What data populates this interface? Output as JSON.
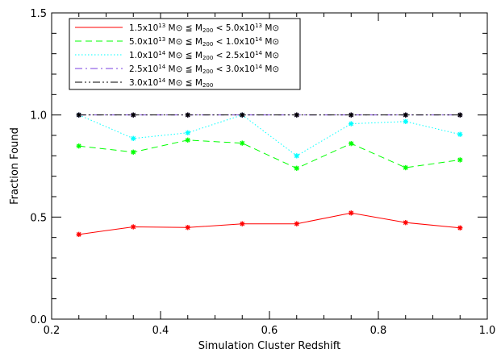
{
  "chart_data": {
    "type": "line",
    "xlabel": "Simulation Cluster Redshift",
    "ylabel": "Fraction Found",
    "xlim": [
      0.2,
      1.0
    ],
    "ylim": [
      0.0,
      1.5
    ],
    "xticks": [
      "0.2",
      "0.4",
      "0.6",
      "0.8",
      "1.0"
    ],
    "yticks": [
      "0.0",
      "0.5",
      "1.0",
      "1.5"
    ],
    "x": [
      0.25,
      0.35,
      0.45,
      0.55,
      0.65,
      0.75,
      0.85,
      0.95
    ],
    "legend_position": "top-left",
    "grid": false,
    "series": [
      {
        "legend": {
          "lo_mant": "1.5x10",
          "lo_exp": "13",
          "op1": "M⊙ ≦ M",
          "mid_sub": "200",
          "op2": "< 5.0x10",
          "hi_exp": "13",
          "unit": "M⊙"
        },
        "color": "#ff0000",
        "style": "solid",
        "values": [
          0.415,
          0.452,
          0.449,
          0.467,
          0.467,
          0.52,
          0.473,
          0.447
        ]
      },
      {
        "legend": {
          "lo_mant": "5.0x10",
          "lo_exp": "13",
          "op1": "M⊙ ≦ M",
          "mid_sub": "200",
          "op2": "< 1.0x10",
          "hi_exp": "14",
          "unit": "M⊙"
        },
        "color": "#00ff00",
        "style": "dashed",
        "values": [
          0.848,
          0.818,
          0.877,
          0.862,
          0.739,
          0.86,
          0.742,
          0.78
        ]
      },
      {
        "legend": {
          "lo_mant": "1.0x10",
          "lo_exp": "14",
          "op1": "M⊙ ≦ M",
          "mid_sub": "200",
          "op2": "< 2.5x10",
          "hi_exp": "14",
          "unit": "M⊙"
        },
        "color": "#00ffff",
        "style": "dotted",
        "values": [
          1.0,
          0.885,
          0.913,
          1.0,
          0.8,
          0.957,
          0.968,
          0.905
        ]
      },
      {
        "legend": {
          "lo_mant": "2.5x10",
          "lo_exp": "14",
          "op1": "M⊙ ≦ M",
          "mid_sub": "200",
          "op2": "< 3.0x10",
          "hi_exp": "14",
          "unit": "M⊙"
        },
        "color": "#7a3fe0",
        "style": "dashdot",
        "values": [
          1.0,
          1.0,
          1.0,
          1.0,
          1.0,
          1.0,
          1.0,
          1.0
        ]
      },
      {
        "legend": {
          "lo_mant": "3.0x10",
          "lo_exp": "14",
          "op1": "M⊙ ≦ M",
          "mid_sub": "200",
          "op2": "",
          "hi_exp": "",
          "unit": ""
        },
        "color": "#000000",
        "style": "dashdotdot",
        "values": [
          1.0,
          1.0,
          1.0,
          1.0,
          1.0,
          1.0,
          1.0,
          1.0
        ]
      }
    ]
  }
}
